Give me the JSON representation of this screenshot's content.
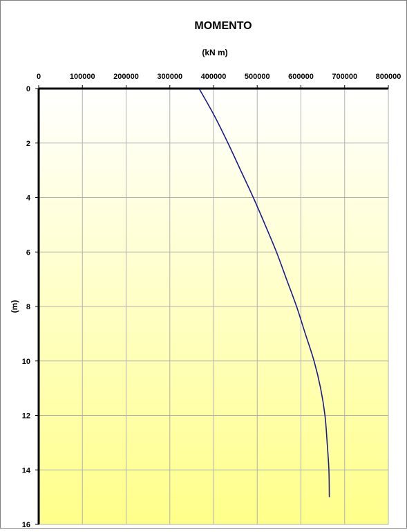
{
  "chart_data": {
    "type": "line",
    "title": "MOMENTO",
    "subtitle": "(kN m)",
    "xlabel": "",
    "ylabel": "(m)",
    "x_axis_position": "top",
    "y_axis_inverted": true,
    "xlim": [
      0,
      800000
    ],
    "ylim": [
      0,
      16
    ],
    "x_ticks": [
      "0",
      "100000",
      "200000",
      "300000",
      "400000",
      "500000",
      "600000",
      "700000",
      "800000"
    ],
    "y_ticks": [
      "0",
      "2",
      "4",
      "6",
      "8",
      "10",
      "12",
      "14",
      "16"
    ],
    "grid": true,
    "legend": "none",
    "series": [
      {
        "color": "#1a1a8c",
        "points": [
          {
            "x": 367000,
            "y": 0
          },
          {
            "x": 402000,
            "y": 1
          },
          {
            "x": 433000,
            "y": 2
          },
          {
            "x": 462000,
            "y": 3
          },
          {
            "x": 491000,
            "y": 4
          },
          {
            "x": 518000,
            "y": 5
          },
          {
            "x": 544000,
            "y": 6
          },
          {
            "x": 567000,
            "y": 7
          },
          {
            "x": 590000,
            "y": 8
          },
          {
            "x": 610000,
            "y": 9
          },
          {
            "x": 630000,
            "y": 10
          },
          {
            "x": 645000,
            "y": 11
          },
          {
            "x": 655000,
            "y": 12
          },
          {
            "x": 660000,
            "y": 13
          },
          {
            "x": 664000,
            "y": 14
          },
          {
            "x": 665000,
            "y": 15
          }
        ]
      }
    ]
  },
  "colors": {
    "background_top": "#ffffff",
    "background_bottom": "#ffff8a",
    "grid": "#b0b0b0",
    "axis": "#000000",
    "border": "#7f7f7f"
  }
}
